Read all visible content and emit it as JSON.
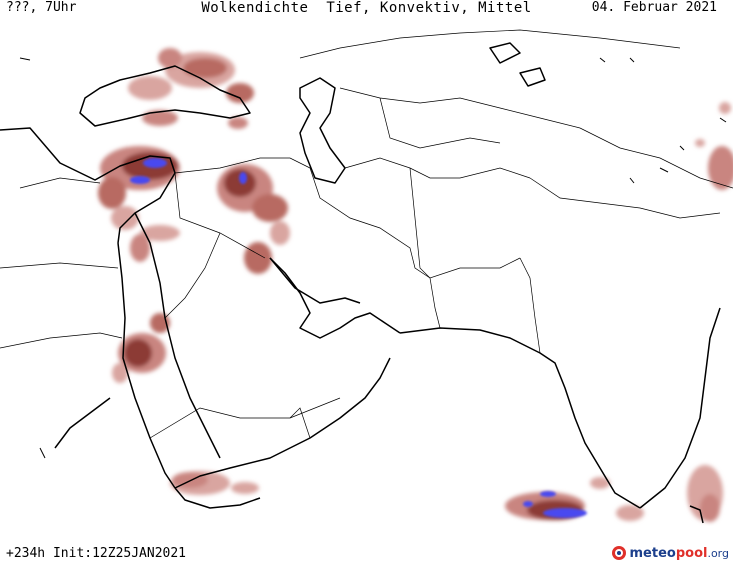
{
  "header": {
    "left": "???, 7Uhr",
    "title": "Wolkendichte  Tief, Konvektiv, Mittel",
    "date": "04. Februar 2021"
  },
  "footer": {
    "run_info": "+234h Init:12Z25JAN2021"
  },
  "logo": {
    "part_a": "meteo",
    "part_b": "pool",
    "part_c": ".org"
  },
  "colors": {
    "cloud_low": "#d9a5a0",
    "cloud_mid": "#b86a62",
    "cloud_dense": "#8c3a35",
    "cloud_convective": "#4a48f0",
    "coastline": "#000000",
    "border": "#000000"
  }
}
